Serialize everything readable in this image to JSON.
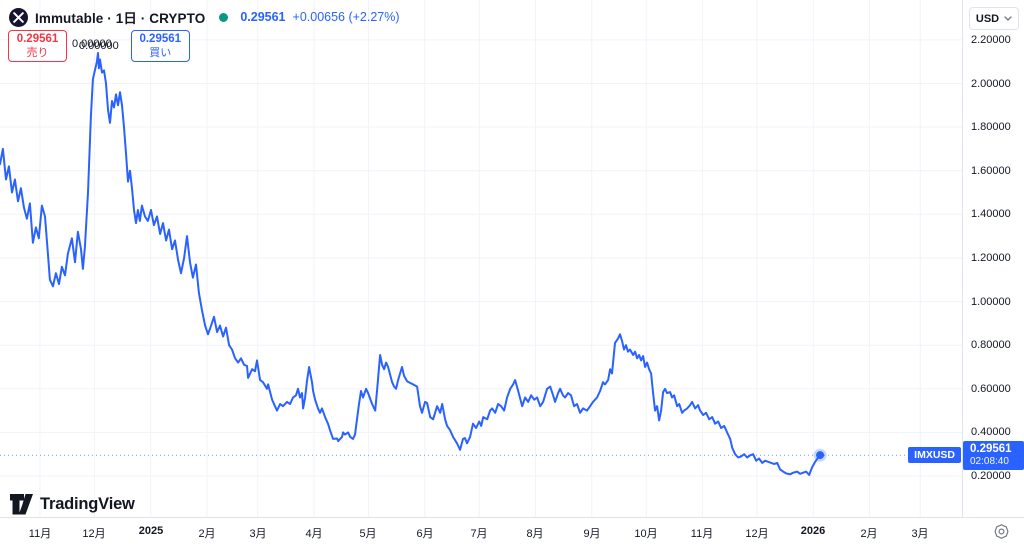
{
  "header": {
    "symbol_title": "Immutable · 1日 · CRYPTO",
    "price": "0.29561",
    "change": "+0.00656 (+2.27%)",
    "sell_button": {
      "price": "0.29561",
      "label": "売り"
    },
    "buy_button": {
      "price": "0.29561",
      "label": "買い"
    }
  },
  "price_scale": {
    "currency": "USD"
  },
  "price_line": {
    "symbol_badge": "IMXUSD",
    "price": "0.29561",
    "countdown": "02:08:40",
    "value": 0.29561
  },
  "footer": {
    "logo_text": "TradingView"
  },
  "colors": {
    "line": "#2962ff",
    "sell_red": "#f23645",
    "buy_blue": "#2962ff",
    "status_green": "#089981",
    "badge_bg": "#2962ff",
    "grid": "#f0f3fa",
    "axis_border": "#e0e3eb",
    "text": "#131722",
    "muted": "#787b86"
  },
  "chart_data": {
    "type": "line",
    "symbol": "IMXUSD",
    "title": "Immutable IMX / USD daily line chart",
    "x_unit": "days since 2024-10-10 (left edge of chart)",
    "x_domain": [
      0,
      530
    ],
    "y_domain": [
      0.012,
      2.383
    ],
    "grid": true,
    "y_ticks": [
      {
        "label": "2.20000",
        "value": 2.2
      },
      {
        "label": "2.00000",
        "value": 2.0
      },
      {
        "label": "1.80000",
        "value": 1.8
      },
      {
        "label": "1.60000",
        "value": 1.6
      },
      {
        "label": "1.40000",
        "value": 1.4
      },
      {
        "label": "1.20000",
        "value": 1.2
      },
      {
        "label": "1.00000",
        "value": 1.0
      },
      {
        "label": "0.80000",
        "value": 0.8
      },
      {
        "label": "0.60000",
        "value": 0.6
      },
      {
        "label": "0.40000",
        "value": 0.4
      },
      {
        "label": "0.20000",
        "value": 0.2
      }
    ],
    "x_ticks": [
      {
        "label": "11月",
        "day": 22,
        "bold": false
      },
      {
        "label": "12月",
        "day": 52,
        "bold": false
      },
      {
        "label": "2025",
        "day": 83,
        "bold": true
      },
      {
        "label": "2月",
        "day": 114,
        "bold": false
      },
      {
        "label": "3月",
        "day": 142,
        "bold": false
      },
      {
        "label": "4月",
        "day": 173,
        "bold": false
      },
      {
        "label": "5月",
        "day": 203,
        "bold": false
      },
      {
        "label": "6月",
        "day": 234,
        "bold": false
      },
      {
        "label": "7月",
        "day": 264,
        "bold": false
      },
      {
        "label": "8月",
        "day": 295,
        "bold": false
      },
      {
        "label": "9月",
        "day": 326,
        "bold": false
      },
      {
        "label": "10月",
        "day": 356,
        "bold": false
      },
      {
        "label": "11月",
        "day": 387,
        "bold": false
      },
      {
        "label": "12月",
        "day": 417,
        "bold": false
      },
      {
        "label": "2026",
        "day": 448,
        "bold": true
      },
      {
        "label": "2月",
        "day": 479,
        "bold": false
      },
      {
        "label": "3月",
        "day": 507,
        "bold": false
      }
    ],
    "annotation": {
      "label": "0.00000",
      "day": 49,
      "price": 2.14
    },
    "last_point_marker": true,
    "points": [
      [
        0,
        1.63
      ],
      [
        1.6,
        1.7
      ],
      [
        3.3,
        1.56
      ],
      [
        4.9,
        1.62
      ],
      [
        6.6,
        1.5
      ],
      [
        8.2,
        1.56
      ],
      [
        9.9,
        1.46
      ],
      [
        11.5,
        1.52
      ],
      [
        13.2,
        1.43
      ],
      [
        14.8,
        1.38
      ],
      [
        16.5,
        1.45
      ],
      [
        18.1,
        1.27
      ],
      [
        19.8,
        1.34
      ],
      [
        21.4,
        1.29
      ],
      [
        23.1,
        1.44
      ],
      [
        24.8,
        1.39
      ],
      [
        26.4,
        1.22
      ],
      [
        27.5,
        1.1
      ],
      [
        29.2,
        1.07
      ],
      [
        30.8,
        1.13
      ],
      [
        32.5,
        1.08
      ],
      [
        34.1,
        1.16
      ],
      [
        35.8,
        1.12
      ],
      [
        37.4,
        1.22
      ],
      [
        39.6,
        1.29
      ],
      [
        41.3,
        1.18
      ],
      [
        42.9,
        1.32
      ],
      [
        44.6,
        1.24
      ],
      [
        45.7,
        1.15
      ],
      [
        46.8,
        1.25
      ],
      [
        48.5,
        1.5
      ],
      [
        50.1,
        1.85
      ],
      [
        51.2,
        2.02
      ],
      [
        52.3,
        2.06
      ],
      [
        53.4,
        2.1
      ],
      [
        54,
        2.14
      ],
      [
        54.5,
        2.07
      ],
      [
        55.1,
        2.11
      ],
      [
        56.2,
        2.05
      ],
      [
        57.3,
        2.06
      ],
      [
        58.4,
        2.0
      ],
      [
        59.5,
        1.88
      ],
      [
        60.6,
        1.82
      ],
      [
        61.7,
        1.92
      ],
      [
        62.8,
        1.89
      ],
      [
        63.9,
        1.95
      ],
      [
        65,
        1.9
      ],
      [
        66.1,
        1.96
      ],
      [
        67.2,
        1.9
      ],
      [
        68.3,
        1.8
      ],
      [
        69.4,
        1.68
      ],
      [
        70.5,
        1.55
      ],
      [
        71.6,
        1.6
      ],
      [
        72.7,
        1.52
      ],
      [
        73.8,
        1.42
      ],
      [
        74.9,
        1.36
      ],
      [
        76,
        1.42
      ],
      [
        77.1,
        1.37
      ],
      [
        78.2,
        1.44
      ],
      [
        79.9,
        1.39
      ],
      [
        81.5,
        1.37
      ],
      [
        83.2,
        1.42
      ],
      [
        84.8,
        1.35
      ],
      [
        86.5,
        1.39
      ],
      [
        88.2,
        1.31
      ],
      [
        89.8,
        1.36
      ],
      [
        91.5,
        1.28
      ],
      [
        93.1,
        1.33
      ],
      [
        94.8,
        1.24
      ],
      [
        96.4,
        1.28
      ],
      [
        98.1,
        1.19
      ],
      [
        99.7,
        1.13
      ],
      [
        101.4,
        1.2
      ],
      [
        103,
        1.3
      ],
      [
        104.7,
        1.18
      ],
      [
        106.3,
        1.11
      ],
      [
        108,
        1.17
      ],
      [
        109.6,
        1.04
      ],
      [
        111.3,
        0.96
      ],
      [
        113,
        0.89
      ],
      [
        114.6,
        0.85
      ],
      [
        116.3,
        0.89
      ],
      [
        117.9,
        0.93
      ],
      [
        119.6,
        0.86
      ],
      [
        121.2,
        0.89
      ],
      [
        122.9,
        0.84
      ],
      [
        124.5,
        0.88
      ],
      [
        126.2,
        0.8
      ],
      [
        127.8,
        0.78
      ],
      [
        129.5,
        0.74
      ],
      [
        131.2,
        0.72
      ],
      [
        132.8,
        0.74
      ],
      [
        134.5,
        0.71
      ],
      [
        136.1,
        0.705
      ],
      [
        136.7,
        0.65
      ],
      [
        138.9,
        0.69
      ],
      [
        140.5,
        0.68
      ],
      [
        141.6,
        0.73
      ],
      [
        143.3,
        0.64
      ],
      [
        144.9,
        0.63
      ],
      [
        147.1,
        0.6
      ],
      [
        147.7,
        0.62
      ],
      [
        149.9,
        0.55
      ],
      [
        151.5,
        0.52
      ],
      [
        152.6,
        0.5
      ],
      [
        154.3,
        0.53
      ],
      [
        155.9,
        0.52
      ],
      [
        158.1,
        0.54
      ],
      [
        159.8,
        0.53
      ],
      [
        161.4,
        0.56
      ],
      [
        163.1,
        0.57
      ],
      [
        164.2,
        0.6
      ],
      [
        165.3,
        0.56
      ],
      [
        166.4,
        0.58
      ],
      [
        167,
        0.51
      ],
      [
        168.1,
        0.56
      ],
      [
        169.2,
        0.64
      ],
      [
        170.3,
        0.7
      ],
      [
        171.9,
        0.63
      ],
      [
        172.5,
        0.59
      ],
      [
        173.6,
        0.55
      ],
      [
        175.2,
        0.51
      ],
      [
        176.3,
        0.49
      ],
      [
        177.4,
        0.51
      ],
      [
        179.1,
        0.47
      ],
      [
        180.7,
        0.44
      ],
      [
        181.8,
        0.41
      ],
      [
        183.5,
        0.37
      ],
      [
        185.7,
        0.372
      ],
      [
        186.3,
        0.36
      ],
      [
        188.5,
        0.38
      ],
      [
        189,
        0.4
      ],
      [
        190.1,
        0.39
      ],
      [
        191.8,
        0.4
      ],
      [
        192.9,
        0.38
      ],
      [
        194.5,
        0.37
      ],
      [
        195.6,
        0.39
      ],
      [
        196.7,
        0.46
      ],
      [
        197.8,
        0.53
      ],
      [
        198.9,
        0.59
      ],
      [
        200,
        0.56
      ],
      [
        201.7,
        0.6
      ],
      [
        202.8,
        0.58
      ],
      [
        205,
        0.53
      ],
      [
        206.7,
        0.5
      ],
      [
        207.8,
        0.6
      ],
      [
        209.4,
        0.755
      ],
      [
        210.5,
        0.71
      ],
      [
        211.6,
        0.69
      ],
      [
        212.7,
        0.72
      ],
      [
        213.8,
        0.7
      ],
      [
        216,
        0.63
      ],
      [
        217.1,
        0.61
      ],
      [
        218.2,
        0.6
      ],
      [
        219.3,
        0.64
      ],
      [
        221.5,
        0.7
      ],
      [
        222.6,
        0.66
      ],
      [
        224.3,
        0.635
      ],
      [
        225.9,
        0.627
      ],
      [
        227.6,
        0.62
      ],
      [
        229.8,
        0.61
      ],
      [
        231.4,
        0.52
      ],
      [
        232.5,
        0.49
      ],
      [
        234.2,
        0.54
      ],
      [
        235.3,
        0.535
      ],
      [
        237,
        0.47
      ],
      [
        238.6,
        0.46
      ],
      [
        240.8,
        0.52
      ],
      [
        242.5,
        0.49
      ],
      [
        243.6,
        0.53
      ],
      [
        245.2,
        0.46
      ],
      [
        246.3,
        0.43
      ],
      [
        248,
        0.41
      ],
      [
        249.6,
        0.38
      ],
      [
        251.8,
        0.35
      ],
      [
        253.5,
        0.32
      ],
      [
        255.1,
        0.37
      ],
      [
        256.2,
        0.374
      ],
      [
        257.3,
        0.35
      ],
      [
        259,
        0.38
      ],
      [
        260.6,
        0.44
      ],
      [
        262.3,
        0.42
      ],
      [
        264,
        0.45
      ],
      [
        265.1,
        0.43
      ],
      [
        266.2,
        0.47
      ],
      [
        268.4,
        0.46
      ],
      [
        270,
        0.5
      ],
      [
        271.1,
        0.51
      ],
      [
        272.8,
        0.49
      ],
      [
        274.4,
        0.53
      ],
      [
        276.1,
        0.52
      ],
      [
        277.7,
        0.5
      ],
      [
        279.4,
        0.56
      ],
      [
        281.1,
        0.6
      ],
      [
        282.7,
        0.62
      ],
      [
        283.8,
        0.64
      ],
      [
        285.5,
        0.59
      ],
      [
        287.7,
        0.52
      ],
      [
        289.3,
        0.56
      ],
      [
        291,
        0.54
      ],
      [
        292.6,
        0.57
      ],
      [
        294.3,
        0.55
      ],
      [
        295.9,
        0.56
      ],
      [
        297.6,
        0.52
      ],
      [
        299.2,
        0.54
      ],
      [
        301.4,
        0.6
      ],
      [
        303.1,
        0.61
      ],
      [
        304.7,
        0.57
      ],
      [
        305.8,
        0.54
      ],
      [
        307.5,
        0.58
      ],
      [
        308.6,
        0.6
      ],
      [
        310.2,
        0.57
      ],
      [
        311.3,
        0.56
      ],
      [
        313,
        0.58
      ],
      [
        314.6,
        0.57
      ],
      [
        316.3,
        0.52
      ],
      [
        317.9,
        0.53
      ],
      [
        319.6,
        0.49
      ],
      [
        321.2,
        0.51
      ],
      [
        323.4,
        0.5
      ],
      [
        325.1,
        0.52
      ],
      [
        326.7,
        0.54
      ],
      [
        328.9,
        0.56
      ],
      [
        330.6,
        0.59
      ],
      [
        332.2,
        0.63
      ],
      [
        333.3,
        0.62
      ],
      [
        335,
        0.64
      ],
      [
        336.1,
        0.69
      ],
      [
        337.2,
        0.67
      ],
      [
        338.8,
        0.81
      ],
      [
        340.5,
        0.83
      ],
      [
        341.6,
        0.85
      ],
      [
        342.7,
        0.82
      ],
      [
        343.8,
        0.78
      ],
      [
        344.9,
        0.8
      ],
      [
        346,
        0.77
      ],
      [
        347.1,
        0.78
      ],
      [
        348.8,
        0.755
      ],
      [
        349.9,
        0.77
      ],
      [
        351,
        0.74
      ],
      [
        352.1,
        0.755
      ],
      [
        353.2,
        0.73
      ],
      [
        354.3,
        0.75
      ],
      [
        355.4,
        0.7
      ],
      [
        356.5,
        0.72
      ],
      [
        357.6,
        0.69
      ],
      [
        358.7,
        0.67
      ],
      [
        359.8,
        0.58
      ],
      [
        360.9,
        0.5
      ],
      [
        362,
        0.52
      ],
      [
        363.1,
        0.455
      ],
      [
        364.2,
        0.5
      ],
      [
        365.3,
        0.585
      ],
      [
        366.4,
        0.6
      ],
      [
        367.5,
        0.58
      ],
      [
        369.2,
        0.585
      ],
      [
        370.3,
        0.56
      ],
      [
        371.4,
        0.57
      ],
      [
        373.1,
        0.52
      ],
      [
        374.2,
        0.53
      ],
      [
        375.8,
        0.49
      ],
      [
        376.9,
        0.5
      ],
      [
        378.6,
        0.51
      ],
      [
        380.2,
        0.525
      ],
      [
        381.3,
        0.54
      ],
      [
        383,
        0.51
      ],
      [
        384.6,
        0.525
      ],
      [
        385.7,
        0.5
      ],
      [
        387.4,
        0.48
      ],
      [
        389,
        0.49
      ],
      [
        390.7,
        0.46
      ],
      [
        392.4,
        0.47
      ],
      [
        394,
        0.44
      ],
      [
        395.7,
        0.45
      ],
      [
        397.3,
        0.42
      ],
      [
        399,
        0.43
      ],
      [
        400.6,
        0.4
      ],
      [
        402.3,
        0.37
      ],
      [
        403.4,
        0.33
      ],
      [
        405,
        0.3
      ],
      [
        406.7,
        0.285
      ],
      [
        408.3,
        0.29
      ],
      [
        410,
        0.3
      ],
      [
        411.6,
        0.285
      ],
      [
        413.3,
        0.295
      ],
      [
        414.9,
        0.3
      ],
      [
        416.6,
        0.27
      ],
      [
        418.2,
        0.28
      ],
      [
        419.9,
        0.26
      ],
      [
        421.5,
        0.27
      ],
      [
        423.2,
        0.265
      ],
      [
        424.9,
        0.26
      ],
      [
        426.5,
        0.255
      ],
      [
        428.2,
        0.26
      ],
      [
        429.8,
        0.23
      ],
      [
        431.5,
        0.22
      ],
      [
        433.1,
        0.212
      ],
      [
        435.3,
        0.208
      ],
      [
        437,
        0.215
      ],
      [
        439.2,
        0.22
      ],
      [
        440.8,
        0.21
      ],
      [
        442.5,
        0.215
      ],
      [
        444.1,
        0.22
      ],
      [
        445.8,
        0.205
      ],
      [
        447.4,
        0.24
      ],
      [
        449.1,
        0.265
      ],
      [
        450.7,
        0.285
      ],
      [
        451.8,
        0.296
      ]
    ]
  }
}
